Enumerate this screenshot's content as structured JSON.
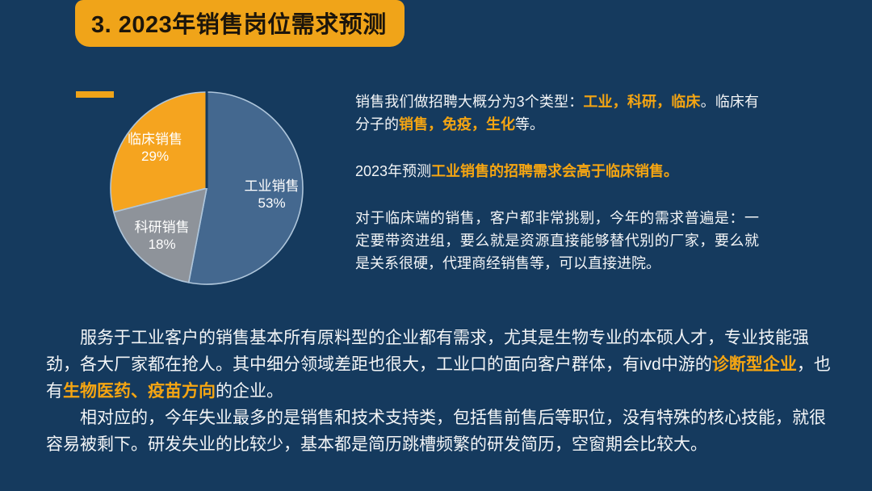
{
  "slide": {
    "title": "3. 2023年销售岗位需求预测",
    "colors": {
      "background": "#153A5E",
      "banner": "#F0A419",
      "accent_text": "#F5A512",
      "body_text": "#F3F5F7",
      "title_text": "#1C150B",
      "pie_label_text": "#FFFFFF"
    }
  },
  "chart_data": {
    "type": "pie",
    "title": "",
    "categories": [
      "工业销售",
      "科研销售",
      "临床销售"
    ],
    "values": [
      53,
      18,
      29
    ],
    "unit": "%",
    "slices": [
      {
        "label": "工业销售",
        "value": 53,
        "display": "53%",
        "color": "#44688F"
      },
      {
        "label": "科研销售",
        "value": 18,
        "display": "18%",
        "color": "#8E939A"
      },
      {
        "label": "临床销售",
        "value": 29,
        "display": "29%",
        "color": "#F5A41F"
      }
    ],
    "start_angle_deg": 0,
    "direction": "clockwise",
    "labels_inside": true,
    "slice_border_color": "#AFC6DB",
    "legend": "none"
  },
  "right_column": {
    "paragraph1": {
      "s1": "销售我们做招聘大概分为3个类型：",
      "s2": "工业，科研，临床",
      "s3": "。临床有分子的",
      "s4": "销售，免疫，生化",
      "s5": "等。"
    },
    "paragraph2": {
      "s1": "2023年预测",
      "s2": "工业销售的招聘需求会高于临床销售。"
    },
    "paragraph3": "对于临床端的销售，客户都非常挑剔，今年的需求普遍是：一定要带资进组，要么就是资源直接能够替代别的厂家，要么就是关系很硬，代理商经销售等，可以直接进院。"
  },
  "bottom_block": {
    "paragraph1": {
      "s1": "服务于工业客户的销售基本所有原料型的企业都有需求，尤其是生物专业的本硕人才，专业技能强劲，各大厂家都在抢人。其中细分领域差距也很大，工业口的面向客户群体，有ivd中游的",
      "s2": "诊断型企业",
      "s3": "，也有",
      "s4": "生物医药、疫苗方向",
      "s5": "的企业。"
    },
    "paragraph2": "相对应的，今年失业最多的是销售和技术支持类，包括售前售后等职位，没有特殊的核心技能，就很容易被剩下。研发失业的比较少，基本都是简历跳槽频繁的研发简历，空窗期会比较大。"
  }
}
